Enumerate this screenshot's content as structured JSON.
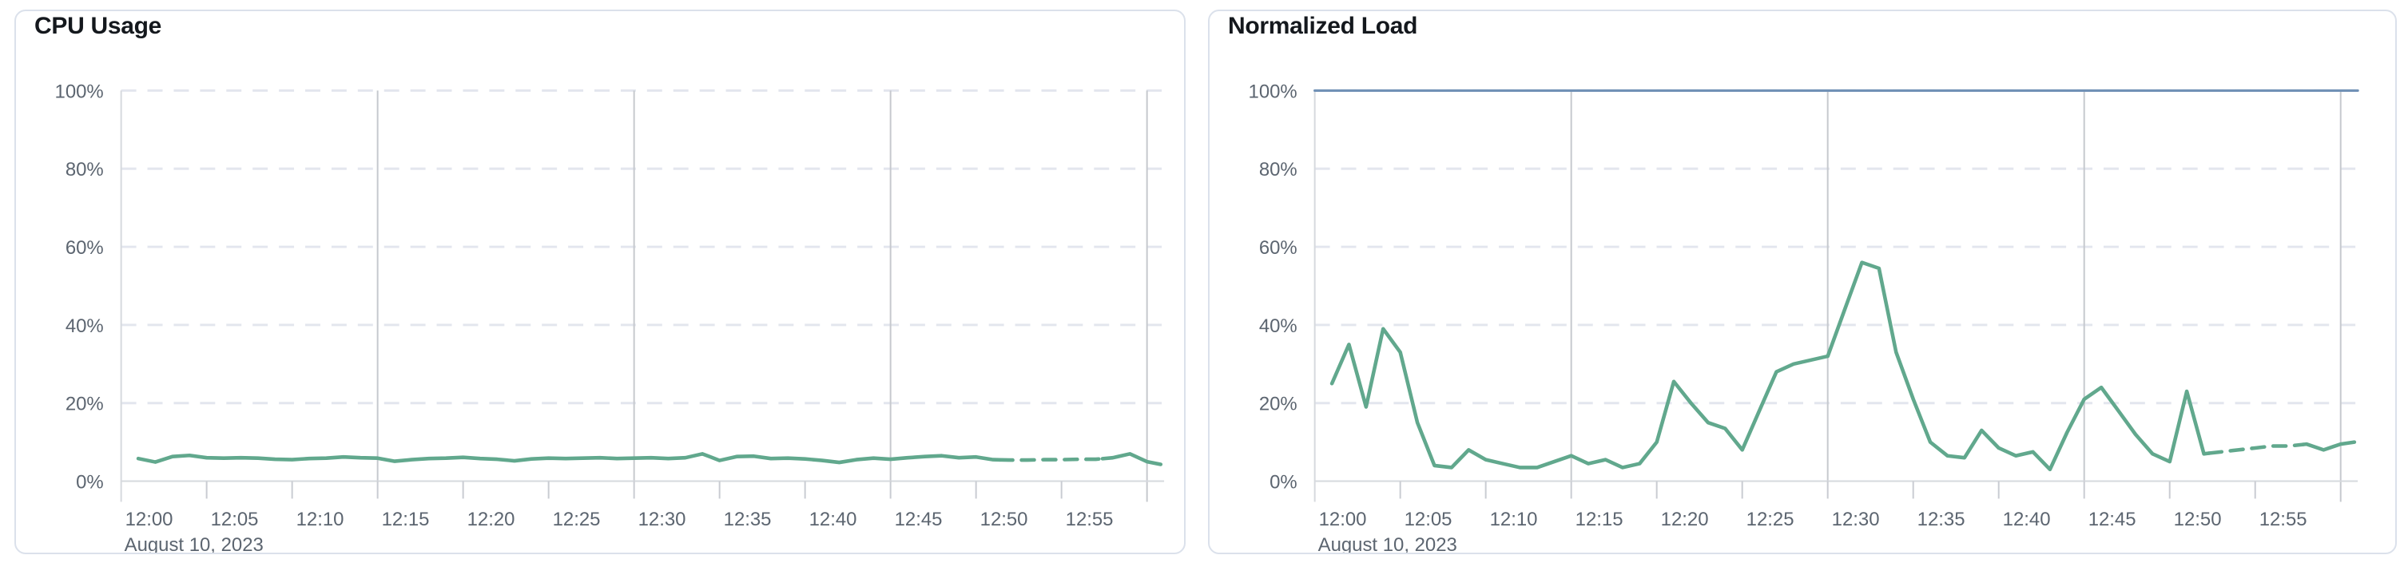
{
  "page": {
    "background": "#ffffff",
    "panel_border_color": "#dbe1eb"
  },
  "colors": {
    "series_green": "#61a88d",
    "limit_blue": "#7191b6",
    "grid_dashed": "#e3e6ee",
    "grid_solid": "#c6c9ce",
    "axis_line": "#d6d9de",
    "tick_mark": "#c9ccd2",
    "tick_text": "#5c6570",
    "title_text": "#14181d"
  },
  "chart_data": [
    {
      "type": "line",
      "title": "CPU Usage",
      "xlabel": "",
      "ylabel": "",
      "ylim": [
        0,
        100
      ],
      "xlim_minutes": [
        0,
        61
      ],
      "grid": {
        "horizontal_dashed_at": [
          20,
          40,
          60,
          80,
          100
        ],
        "vertical_solid_at_minutes": [
          15,
          30,
          45,
          60
        ],
        "h_color": "#e3e6ee",
        "v_color": "#c6c9ce"
      },
      "x_axis": {
        "tick_minutes": [
          0,
          5,
          10,
          15,
          20,
          25,
          30,
          35,
          40,
          45,
          50,
          55
        ],
        "tick_labels": [
          "12:00",
          "12:05",
          "12:10",
          "12:15",
          "12:20",
          "12:25",
          "12:30",
          "12:35",
          "12:40",
          "12:45",
          "12:50",
          "12:55"
        ],
        "date_label": "August 10, 2023"
      },
      "y_axis": {
        "tick_values": [
          0,
          20,
          40,
          60,
          80,
          100
        ],
        "tick_labels": [
          "0%",
          "20%",
          "40%",
          "60%",
          "80%",
          "100%"
        ]
      },
      "series": [
        {
          "name": "cpu-usage",
          "color": "#61a88d",
          "width": 4.6,
          "x": [
            1,
            2,
            3,
            4,
            5,
            6,
            7,
            8,
            9,
            10,
            11,
            12,
            13,
            14,
            15,
            16,
            17,
            18,
            19,
            20,
            21,
            22,
            23,
            24,
            25,
            26,
            27,
            28,
            29,
            30,
            31,
            32,
            33,
            34,
            35,
            36,
            37,
            38,
            39,
            40,
            41,
            42,
            43,
            44,
            45,
            46,
            47,
            48,
            49,
            50,
            51,
            52,
            53,
            54,
            55,
            56,
            57,
            58,
            59,
            60,
            60.8
          ],
          "y": [
            5.8,
            4.9,
            6.3,
            6.6,
            6.0,
            5.9,
            6.0,
            5.9,
            5.6,
            5.5,
            5.8,
            5.9,
            6.2,
            6.0,
            5.9,
            5.1,
            5.5,
            5.8,
            5.9,
            6.1,
            5.8,
            5.6,
            5.2,
            5.7,
            5.9,
            5.8,
            5.9,
            6.0,
            5.8,
            5.9,
            6.0,
            5.8,
            6.0,
            7.0,
            5.3,
            6.3,
            6.4,
            5.8,
            5.9,
            5.7,
            5.3,
            4.8,
            5.5,
            5.9,
            5.6,
            6.0,
            6.3,
            6.5,
            6.0,
            6.2,
            5.5,
            5.4,
            5.4,
            5.5,
            5.5,
            5.6,
            5.6,
            6.0,
            7.0,
            5.0,
            4.3
          ],
          "segments": [
            {
              "from": 1,
              "to": 51.4,
              "style": "solid"
            },
            {
              "from": 51.4,
              "to": 57.4,
              "style": "dashed"
            },
            {
              "from": 57.4,
              "to": 60.8,
              "style": "solid"
            }
          ]
        }
      ]
    },
    {
      "type": "line",
      "title": "Normalized Load",
      "xlabel": "",
      "ylabel": "",
      "ylim": [
        0,
        100
      ],
      "xlim_minutes": [
        0,
        61
      ],
      "grid": {
        "horizontal_dashed_at": [
          20,
          40,
          60,
          80,
          100
        ],
        "vertical_solid_at_minutes": [
          15,
          30,
          45,
          60
        ],
        "h_color": "#e3e6ee",
        "v_color": "#c6c9ce"
      },
      "x_axis": {
        "tick_minutes": [
          0,
          5,
          10,
          15,
          20,
          25,
          30,
          35,
          40,
          45,
          50,
          55
        ],
        "tick_labels": [
          "12:00",
          "12:05",
          "12:10",
          "12:15",
          "12:20",
          "12:25",
          "12:30",
          "12:35",
          "12:40",
          "12:45",
          "12:50",
          "12:55"
        ],
        "date_label": "August 10, 2023"
      },
      "y_axis": {
        "tick_values": [
          0,
          20,
          40,
          60,
          80,
          100
        ],
        "tick_labels": [
          "0%",
          "20%",
          "40%",
          "60%",
          "80%",
          "100%"
        ]
      },
      "series": [
        {
          "name": "limit-100-percent",
          "color": "#7191b6",
          "width": 3.2,
          "x": [
            0,
            61
          ],
          "y": [
            100,
            100
          ],
          "segments": [
            {
              "from": 0,
              "to": 61,
              "style": "solid"
            }
          ]
        },
        {
          "name": "normalized-load",
          "color": "#61a88d",
          "width": 4.6,
          "x": [
            1,
            2,
            3,
            4,
            5,
            6,
            7,
            8,
            9,
            10,
            11,
            12,
            13,
            14,
            15,
            16,
            17,
            18,
            19,
            20,
            21,
            22,
            23,
            24,
            25,
            26,
            27,
            28,
            29,
            30,
            31,
            32,
            33,
            34,
            35,
            36,
            37,
            38,
            39,
            40,
            41,
            42,
            43,
            44,
            45,
            46,
            47,
            48,
            49,
            50,
            51,
            52,
            53,
            54,
            55,
            56,
            57,
            58,
            59,
            60,
            60.8
          ],
          "y": [
            25,
            35,
            19,
            39,
            33,
            15,
            4,
            3.5,
            8,
            5.5,
            4.5,
            3.5,
            3.5,
            5,
            6.5,
            4.5,
            5.5,
            3.5,
            4.5,
            10,
            25.5,
            20,
            15,
            13.5,
            8,
            18,
            28,
            30,
            31,
            32,
            44,
            56,
            54.5,
            33,
            21,
            10,
            6.5,
            6,
            13,
            8.5,
            6.5,
            7.5,
            3,
            12.5,
            21,
            24,
            18,
            12,
            7,
            5,
            23,
            7,
            7.5,
            8,
            8.5,
            9,
            9,
            9.5,
            8,
            9.5,
            10
          ],
          "segments": [
            {
              "from": 1,
              "to": 52.3,
              "style": "solid"
            },
            {
              "from": 52.3,
              "to": 57.8,
              "style": "dashed"
            },
            {
              "from": 57.8,
              "to": 60.8,
              "style": "solid"
            }
          ]
        }
      ]
    }
  ]
}
